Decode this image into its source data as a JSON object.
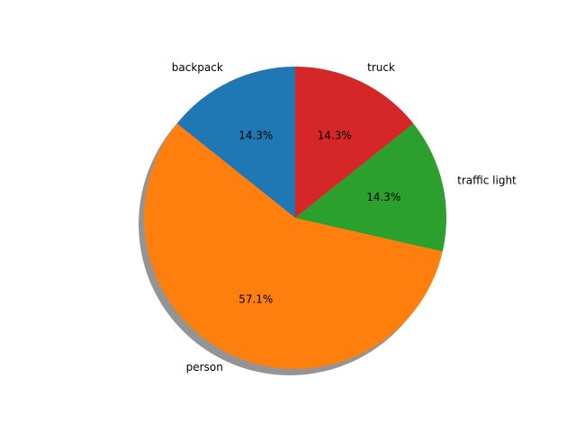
{
  "chart_data": {
    "type": "pie",
    "title": "",
    "categories": [
      "backpack",
      "person",
      "traffic light",
      "truck"
    ],
    "values": [
      1,
      4,
      1,
      1
    ],
    "percent_labels": [
      "14.3%",
      "57.1%",
      "14.3%",
      "14.3%"
    ],
    "colors": [
      "#1f77b4",
      "#ff7f0e",
      "#2ca02c",
      "#d62728"
    ],
    "shadow": true,
    "start_angle_deg": 90,
    "direction": "counterclockwise",
    "legend": "none"
  }
}
